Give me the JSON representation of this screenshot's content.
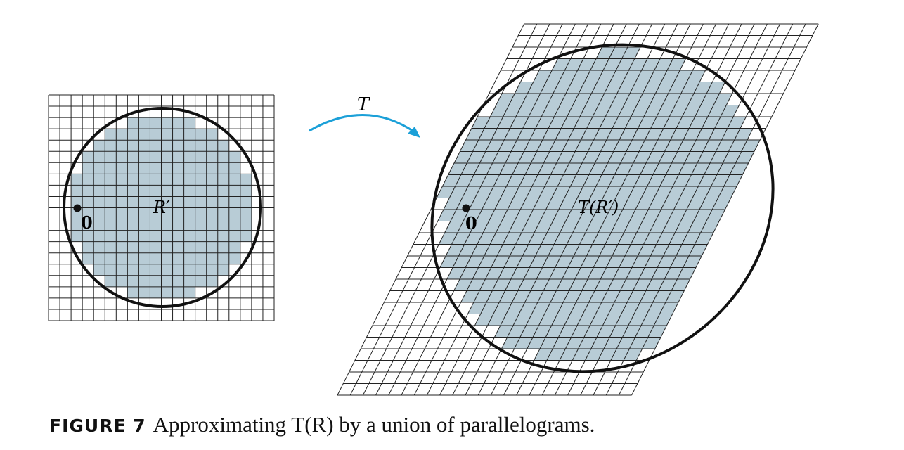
{
  "figure": {
    "map_label": "T",
    "region_label": "R′",
    "image_label": "T(R′)",
    "origin_label": "0",
    "colors": {
      "fill": "#b8ccd6",
      "grid": "#222222",
      "boundary": "#111111",
      "arrow": "#1ba0d8"
    }
  },
  "caption": {
    "label": "FIGURE 7",
    "text": "Approximating T(R) by a union of parallelograms."
  }
}
